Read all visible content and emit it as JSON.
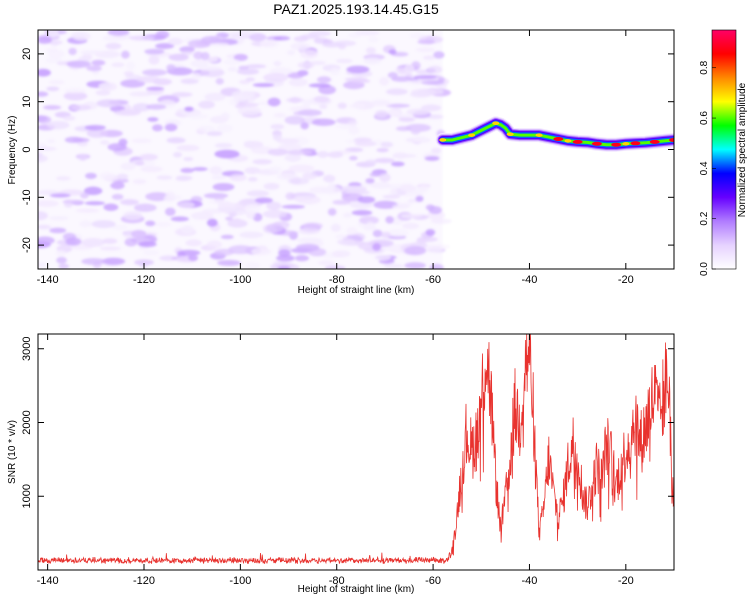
{
  "figure": {
    "title": "PAZ1.2025.193.14.45.G15"
  },
  "chart_data": [
    {
      "type": "heatmap",
      "title": "PAZ1.2025.193.14.45.G15",
      "xlabel": "Height of straight line (km)",
      "ylabel": "Frequency (Hz)",
      "xlim": [
        -142,
        -10
      ],
      "ylim": [
        -25,
        25
      ],
      "xticks": [
        -140,
        -120,
        -100,
        -80,
        -60,
        -40,
        -20
      ],
      "yticks": [
        -20,
        -10,
        0,
        10,
        20
      ],
      "grid": false,
      "colorbar": {
        "label": "Normalized spectral amplitude",
        "range": [
          0,
          0.95
        ],
        "ticks": [
          "0.0",
          "0.2",
          "0.4",
          "0.6",
          "0.8"
        ],
        "colormap": [
          "#ffffff",
          "#e6d2ff",
          "#b07cff",
          "#6600ff",
          "#0000ff",
          "#00ffff",
          "#00ff00",
          "#ffff00",
          "#ff8800",
          "#ff0000",
          "#ff0066"
        ]
      },
      "noise_region": {
        "x_range": [
          -142,
          -58
        ],
        "y_range": [
          -25,
          25
        ],
        "amplitude_range": [
          0.02,
          0.2
        ]
      },
      "signal_ridge": [
        {
          "x": -58,
          "y": 2.0
        },
        {
          "x": -56,
          "y": 2.0
        },
        {
          "x": -54,
          "y": 2.5
        },
        {
          "x": -52,
          "y": 3.0
        },
        {
          "x": -50,
          "y": 4.0
        },
        {
          "x": -48,
          "y": 5.0
        },
        {
          "x": -47,
          "y": 5.5
        },
        {
          "x": -46,
          "y": 5.2
        },
        {
          "x": -45,
          "y": 4.5
        },
        {
          "x": -44,
          "y": 3.2
        },
        {
          "x": -42,
          "y": 3.0
        },
        {
          "x": -40,
          "y": 3.0
        },
        {
          "x": -38,
          "y": 3.0
        },
        {
          "x": -36,
          "y": 2.6
        },
        {
          "x": -34,
          "y": 2.2
        },
        {
          "x": -32,
          "y": 1.8
        },
        {
          "x": -30,
          "y": 1.6
        },
        {
          "x": -28,
          "y": 1.5
        },
        {
          "x": -26,
          "y": 1.2
        },
        {
          "x": -24,
          "y": 1.0
        },
        {
          "x": -22,
          "y": 1.0
        },
        {
          "x": -20,
          "y": 1.2
        },
        {
          "x": -18,
          "y": 1.3
        },
        {
          "x": -16,
          "y": 1.4
        },
        {
          "x": -14,
          "y": 1.6
        },
        {
          "x": -12,
          "y": 1.8
        },
        {
          "x": -10,
          "y": 2.0
        }
      ]
    },
    {
      "type": "line",
      "xlabel": "Height of straight line (km)",
      "ylabel": "SNR (10 * v/v)",
      "xlim": [
        -142,
        -10
      ],
      "ylim": [
        0,
        3200
      ],
      "xticks": [
        -140,
        -120,
        -100,
        -80,
        -60,
        -40,
        -20
      ],
      "yticks": [
        1000,
        2000,
        3000
      ],
      "grid": false,
      "color": "#e8322e",
      "baseline": {
        "x_range": [
          -142,
          -57
        ],
        "mean": 130,
        "jitter": 50
      },
      "envelope": [
        {
          "x": -57,
          "y": 150
        },
        {
          "x": -56,
          "y": 280
        },
        {
          "x": -55,
          "y": 800
        },
        {
          "x": -54,
          "y": 1500
        },
        {
          "x": -53,
          "y": 2000
        },
        {
          "x": -52,
          "y": 1700
        },
        {
          "x": -51,
          "y": 1900
        },
        {
          "x": -50,
          "y": 2400
        },
        {
          "x": -49,
          "y": 3150
        },
        {
          "x": -48,
          "y": 2500
        },
        {
          "x": -47,
          "y": 1300
        },
        {
          "x": -46,
          "y": 600
        },
        {
          "x": -45,
          "y": 1000
        },
        {
          "x": -44,
          "y": 1600
        },
        {
          "x": -43,
          "y": 2300
        },
        {
          "x": -42,
          "y": 2100
        },
        {
          "x": -41,
          "y": 2900
        },
        {
          "x": -40,
          "y": 3150
        },
        {
          "x": -39,
          "y": 2000
        },
        {
          "x": -38,
          "y": 500
        },
        {
          "x": -37,
          "y": 900
        },
        {
          "x": -36,
          "y": 1600
        },
        {
          "x": -35,
          "y": 1100
        },
        {
          "x": -34,
          "y": 750
        },
        {
          "x": -33,
          "y": 1000
        },
        {
          "x": -32,
          "y": 1500
        },
        {
          "x": -31,
          "y": 1800
        },
        {
          "x": -30,
          "y": 1700
        },
        {
          "x": -29,
          "y": 1100
        },
        {
          "x": -28,
          "y": 900
        },
        {
          "x": -27,
          "y": 1200
        },
        {
          "x": -26,
          "y": 1500
        },
        {
          "x": -25,
          "y": 1300
        },
        {
          "x": -24,
          "y": 1800
        },
        {
          "x": -23,
          "y": 1600
        },
        {
          "x": -22,
          "y": 1200
        },
        {
          "x": -21,
          "y": 1500
        },
        {
          "x": -20,
          "y": 1700
        },
        {
          "x": -19,
          "y": 1900
        },
        {
          "x": -18,
          "y": 2200
        },
        {
          "x": -17,
          "y": 1800
        },
        {
          "x": -16,
          "y": 2000
        },
        {
          "x": -15,
          "y": 2300
        },
        {
          "x": -14,
          "y": 2500
        },
        {
          "x": -13,
          "y": 2100
        },
        {
          "x": -12,
          "y": 2600
        },
        {
          "x": -11,
          "y": 2700
        },
        {
          "x": -10.5,
          "y": 1400
        },
        {
          "x": -10,
          "y": 800
        }
      ]
    }
  ]
}
